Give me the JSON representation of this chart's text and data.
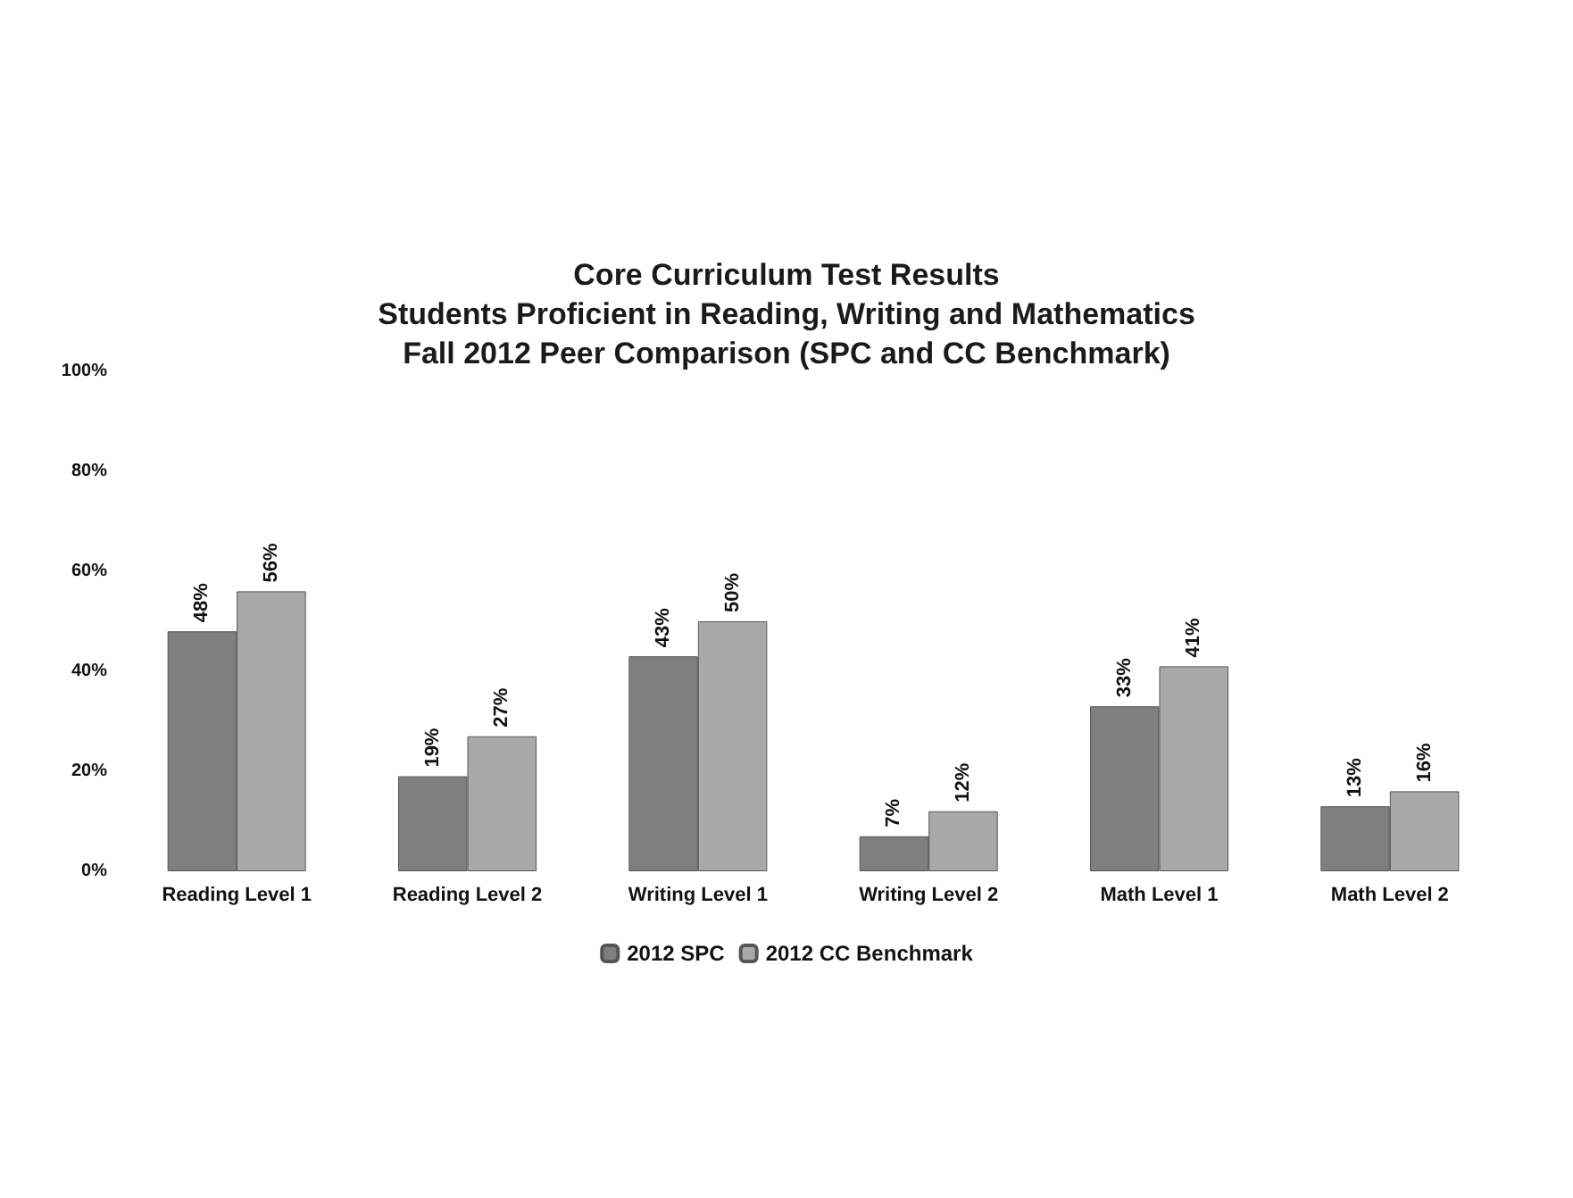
{
  "chart_data": {
    "type": "bar",
    "title": "Core Curriculum Test Results\nStudents Proficient in Reading, Writing and Mathematics\nFall 2012 Peer Comparison (SPC and CC Benchmark)",
    "categories": [
      "Reading Level 1",
      "Reading Level 2",
      "Writing Level 1",
      "Writing Level 2",
      "Math Level 1",
      "Math Level 2"
    ],
    "series": [
      {
        "name": "2012 SPC",
        "color": "#7f7f7f",
        "values": [
          48,
          19,
          43,
          7,
          33,
          13
        ]
      },
      {
        "name": "2012 CC Benchmark",
        "color": "#a9a9a9",
        "values": [
          56,
          27,
          50,
          12,
          41,
          16
        ]
      }
    ],
    "ylim": [
      0,
      100
    ],
    "yticks": [
      {
        "value": 0,
        "label": "0%"
      },
      {
        "value": 20,
        "label": "20%"
      },
      {
        "value": 40,
        "label": "40%"
      },
      {
        "value": 60,
        "label": "60%"
      },
      {
        "value": 80,
        "label": "80%"
      },
      {
        "value": 100,
        "label": "100%"
      }
    ],
    "value_labels": [
      [
        "48%",
        "19%",
        "43%",
        "7%",
        "33%",
        "13%"
      ],
      [
        "56%",
        "27%",
        "50%",
        "12%",
        "41%",
        "16%"
      ]
    ],
    "grid": false,
    "legend": "bottom"
  }
}
